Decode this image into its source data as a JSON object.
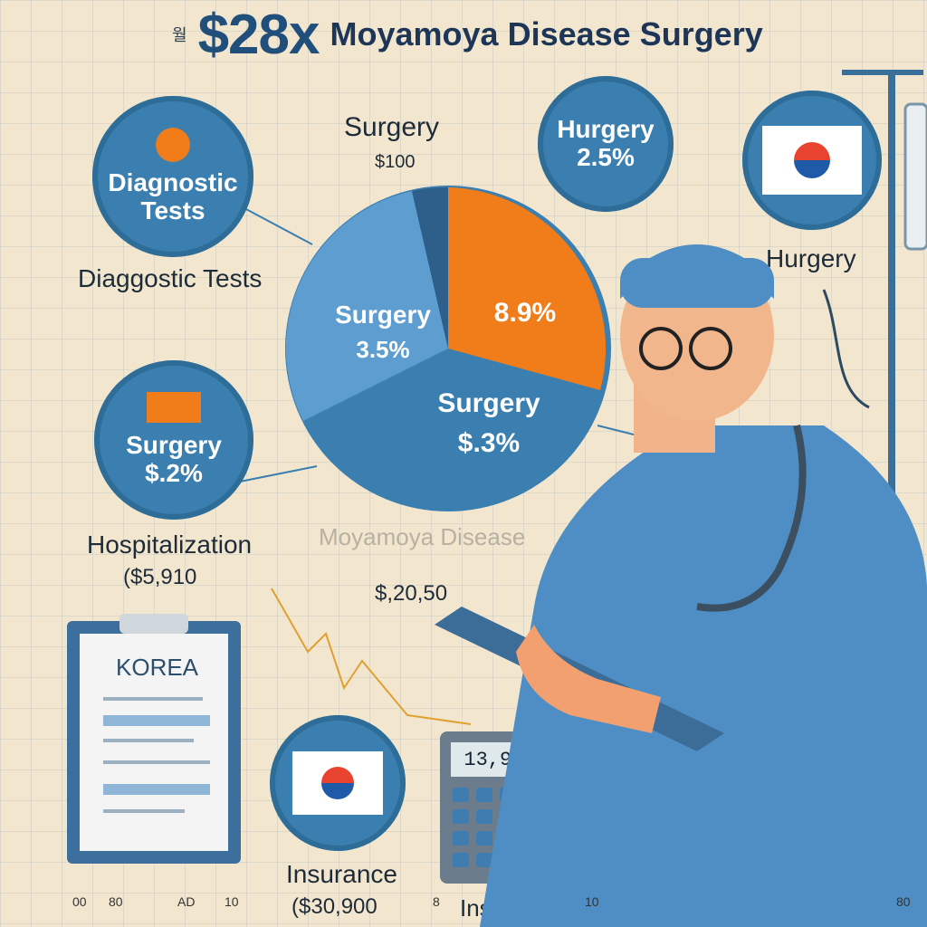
{
  "title": {
    "small": "월",
    "price": "$28x",
    "text": "Moyamoya Disease Surgery"
  },
  "circles": {
    "diag": {
      "label1": "Diagnostic",
      "label2": "Tests"
    },
    "hurgery": {
      "label": "Hurgery",
      "value": "2.5%"
    },
    "surgery_left": {
      "label": "Surgery",
      "value": "$.2%"
    }
  },
  "labels": {
    "surgery_top": "Surgery",
    "surgery_top_val": "$100",
    "diag_side": "Diaggostic Tests",
    "hurgery_right": "Hurgery",
    "hospitalization": "Hospitalization",
    "hosp_val": "($5,910",
    "moyamoya": "Moyamoya Disease",
    "price_mid": "$,20,50",
    "insurance1": "Insurance",
    "ins_val": "($30,900",
    "insurance2": "Insurance",
    "korea": "KOREA"
  },
  "pie": {
    "slice_surgery_a": "Surgery",
    "slice_surgery_a_val": "3.5%",
    "slice_orange_val": "8.9%",
    "slice_surgery_b": "Surgery",
    "slice_surgery_b_val": "$.3%"
  },
  "calculator": {
    "display": "13,985"
  },
  "axis_ticks": [
    "00",
    "80",
    "AD",
    "10",
    "8",
    "10",
    "80"
  ],
  "colors": {
    "blue": "#3a7fb0",
    "orange": "#f07d1a",
    "bg": "#f3e6cf",
    "navy": "#1d3557"
  }
}
